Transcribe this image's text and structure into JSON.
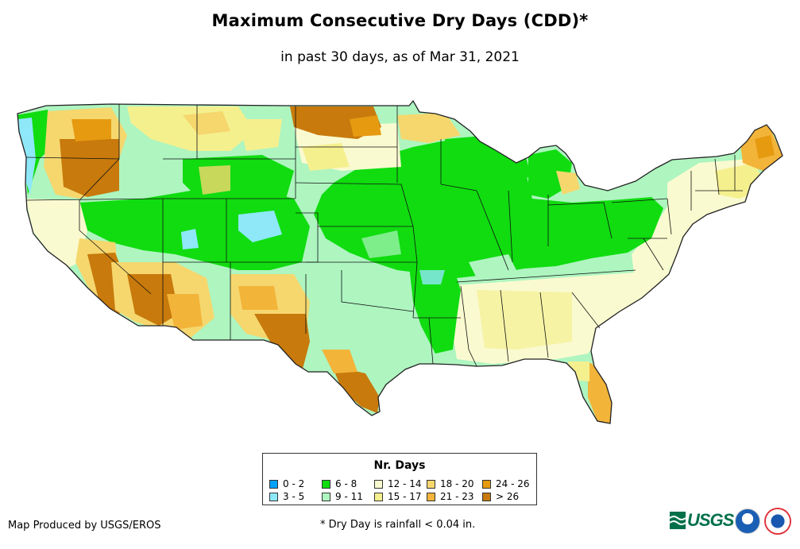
{
  "title": "Maximum Consecutive Dry Days (CDD)*",
  "subtitle": "in past 30 days, as of Mar 31, 2021",
  "legend": {
    "title": "Nr. Days",
    "classes": [
      {
        "label": "0 - 2",
        "color": "#00a2ff"
      },
      {
        "label": "3 - 5",
        "color": "#8ee8f8"
      },
      {
        "label": "6 - 8",
        "color": "#10dc10"
      },
      {
        "label": "9 - 11",
        "color": "#aef5c0"
      },
      {
        "label": "12 - 14",
        "color": "#fafad0"
      },
      {
        "label": "15 - 17",
        "color": "#f5f08e"
      },
      {
        "label": "18 - 20",
        "color": "#f5d76e"
      },
      {
        "label": "21 - 23",
        "color": "#f3b43a"
      },
      {
        "label": "24 - 26",
        "color": "#e69a10"
      },
      {
        "label": "> 26",
        "color": "#c87a0c"
      }
    ]
  },
  "credit": "Map Produced by USGS/EROS",
  "footnote": "* Dry Day is rainfall < 0.04 in.",
  "logos": {
    "usgs": "USGS"
  },
  "colors": {
    "outline": "#222222",
    "state_border": "#111111"
  }
}
